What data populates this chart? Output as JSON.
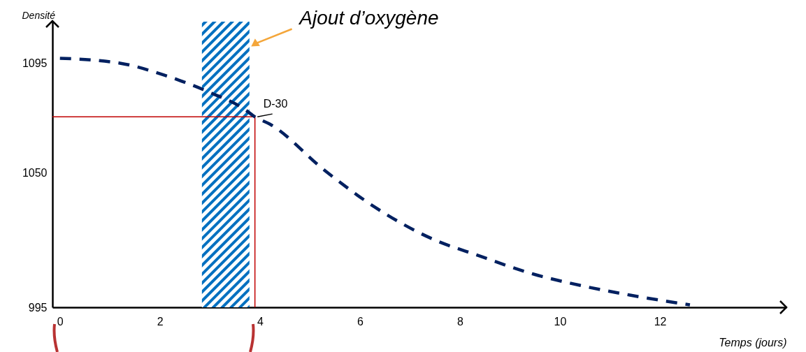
{
  "chart_data": {
    "type": "line",
    "xlabel": "Temps (jours)",
    "ylabel": "Densité",
    "xlim": [
      -0.15,
      14.53
    ],
    "ylim": [
      995,
      1112
    ],
    "xticks": [
      0,
      2,
      4,
      6,
      8,
      10,
      12
    ],
    "yticks": [
      995,
      1050,
      1095
    ],
    "series": [
      {
        "color": "#002060",
        "line_style": "dashed",
        "x": [
          0,
          1.2,
          2.1,
          3.0,
          3.7,
          3.9,
          4.2,
          5.3,
          6.3,
          7.45,
          8.4,
          9.4,
          10.4,
          11.4,
          12.6
        ],
        "values": [
          1097,
          1095,
          1090,
          1083,
          1076,
          1073,
          1070,
          1051,
          1036,
          1023,
          1016,
          1009,
          1004,
          1000,
          996
        ]
      }
    ],
    "ref_lines": [
      {
        "axis": "x",
        "value": 3.9,
        "color": "#c00000"
      },
      {
        "axis": "y",
        "value": 1073,
        "color": "#c00000"
      }
    ],
    "bands": [
      {
        "axis": "x",
        "from": 2.84,
        "to": 3.79,
        "label": "Ajout d’oxygène",
        "color": "#0070c0"
      }
    ],
    "annotations": [
      {
        "text": "D-30",
        "x": 3.9,
        "y": 1073
      }
    ],
    "grid": false
  }
}
